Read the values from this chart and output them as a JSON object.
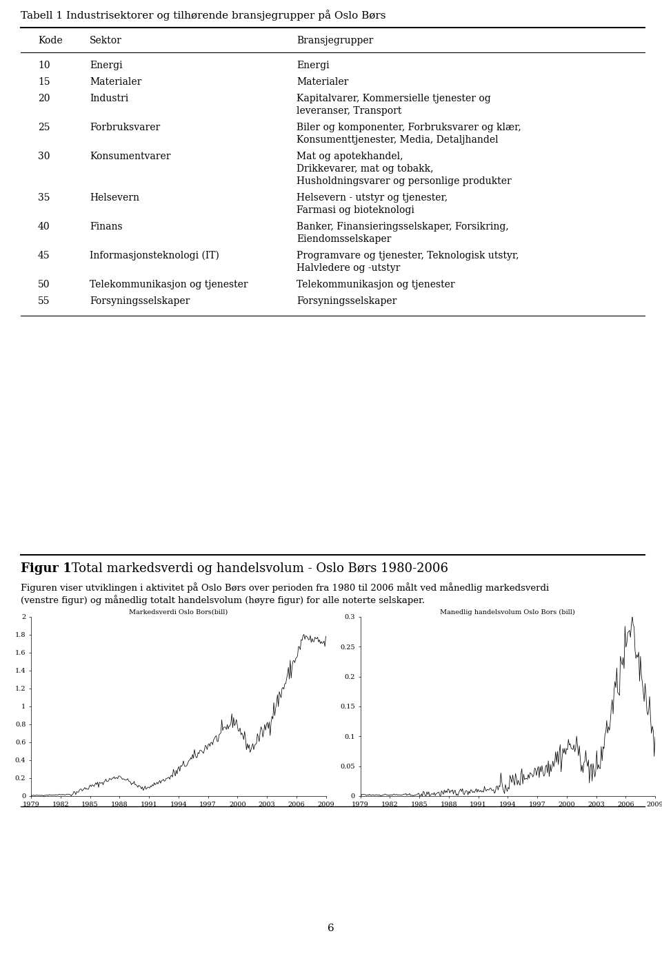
{
  "page_title": "Tabell 1 Industrisektorer og tilhørende bransjegrupper på Oslo Børs",
  "table_headers": [
    "Kode",
    "Sektor",
    "Bransjegrupper"
  ],
  "table_rows": [
    [
      "10",
      "Energi",
      "Energi"
    ],
    [
      "15",
      "Materialer",
      "Materialer"
    ],
    [
      "20",
      "Industri",
      "Kapitalvarer, Kommersielle tjenester og\nleveranser, Transport"
    ],
    [
      "25",
      "Forbruksvarer",
      "Biler og komponenter, Forbruksvarer og klær,\nKonsumenttjenester, Media, Detaljhandel"
    ],
    [
      "30",
      "Konsumentvarer",
      "Mat og apotekhandel,\nDrikkevarer, mat og tobakk,\nHusholdningsvarer og personlige produkter"
    ],
    [
      "35",
      "Helsevern",
      "Helsevern - utstyr og tjenester,\nFarmasi og bioteknologi"
    ],
    [
      "40",
      "Finans",
      "Banker, Finansieringsselskaper, Forsikring,\nEiendomsselskaper"
    ],
    [
      "45",
      "Informasjonsteknologi (IT)",
      "Programvare og tjenester, Teknologisk utstyr,\nHalvledere og -utstyr"
    ],
    [
      "50",
      "Telekommunikasjon og tjenester",
      "Telekommunikasjon og tjenester"
    ],
    [
      "55",
      "Forsyningsselskaper",
      "Forsyningsselskaper"
    ]
  ],
  "figure_title_bold": "Figur 1",
  "figure_title_rest": " Total markedsverdi og handelsvolum - Oslo Børs 1980-2006",
  "figure_caption_line1": "Figuren viser utviklingen i aktivitet på Oslo Børs over perioden fra 1980 til 2006 målt ved månedlig markedsverdi",
  "figure_caption_line2": "(venstre figur) og månedlig totalt handelsvolum (høyre figur) for alle noterte selskaper.",
  "left_chart_title": "Markedsverdi Oslo Bors(bill)",
  "right_chart_title": "Manedlig handelsvolum Oslo Bors (bill)",
  "page_number": "6",
  "background_color": "#ffffff",
  "text_color": "#000000",
  "left_yticks": [
    0,
    0.2,
    0.4,
    0.6,
    0.8,
    1.0,
    1.2,
    1.4,
    1.6,
    1.8,
    2.0
  ],
  "right_yticks": [
    0,
    0.05,
    0.1,
    0.15,
    0.2,
    0.25,
    0.3
  ],
  "xticks": [
    1979,
    1982,
    1985,
    1988,
    1991,
    1994,
    1997,
    2000,
    2003,
    2006,
    2009
  ]
}
